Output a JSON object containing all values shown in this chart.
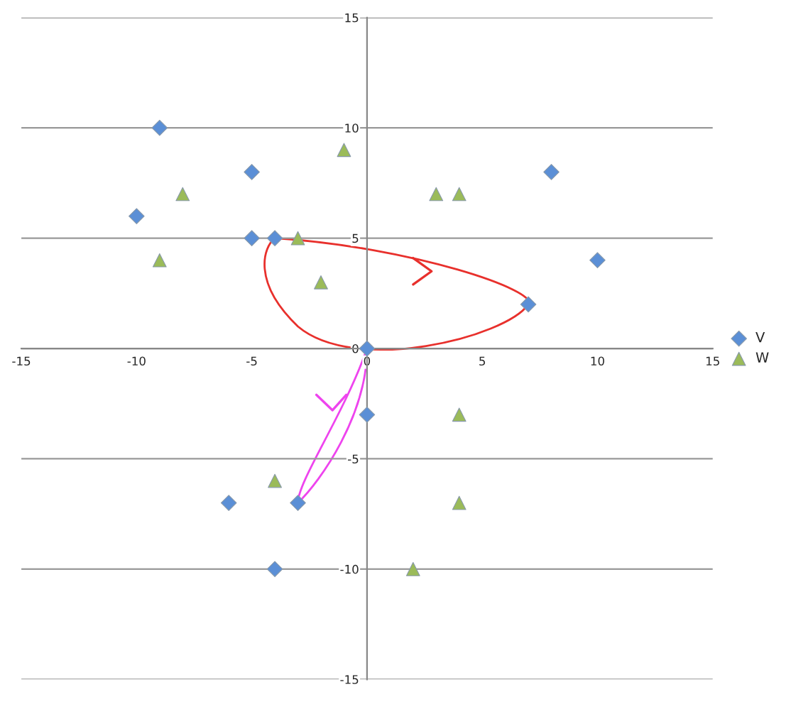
{
  "chart_data": {
    "type": "scatter",
    "series": [
      {
        "name": "V",
        "color": "#5b8fd6",
        "marker": "diamond",
        "x": [
          -9,
          -5,
          -10,
          -5,
          -4,
          8,
          10,
          7,
          0,
          0,
          -6,
          -3,
          -4
        ],
        "values": [
          10,
          8,
          6,
          5,
          5,
          8,
          4,
          2,
          0,
          -3,
          -7,
          -7,
          -10
        ]
      },
      {
        "name": "W",
        "color": "#9bbb59",
        "marker": "triangle",
        "x": [
          -1,
          -8,
          -9,
          -3,
          -2,
          3,
          4,
          4,
          -4,
          4,
          2
        ],
        "values": [
          9,
          7,
          4,
          5,
          3,
          7,
          7,
          -3,
          -6,
          -7,
          -10
        ]
      }
    ],
    "xlim": [
      -15,
      15
    ],
    "ylim": [
      -15,
      15
    ],
    "xticks": [
      -15,
      -10,
      -5,
      0,
      5,
      10,
      15
    ],
    "yticks": [
      -15,
      -10,
      -5,
      0,
      5,
      10,
      15
    ],
    "grid": "y",
    "legend": "right"
  }
}
